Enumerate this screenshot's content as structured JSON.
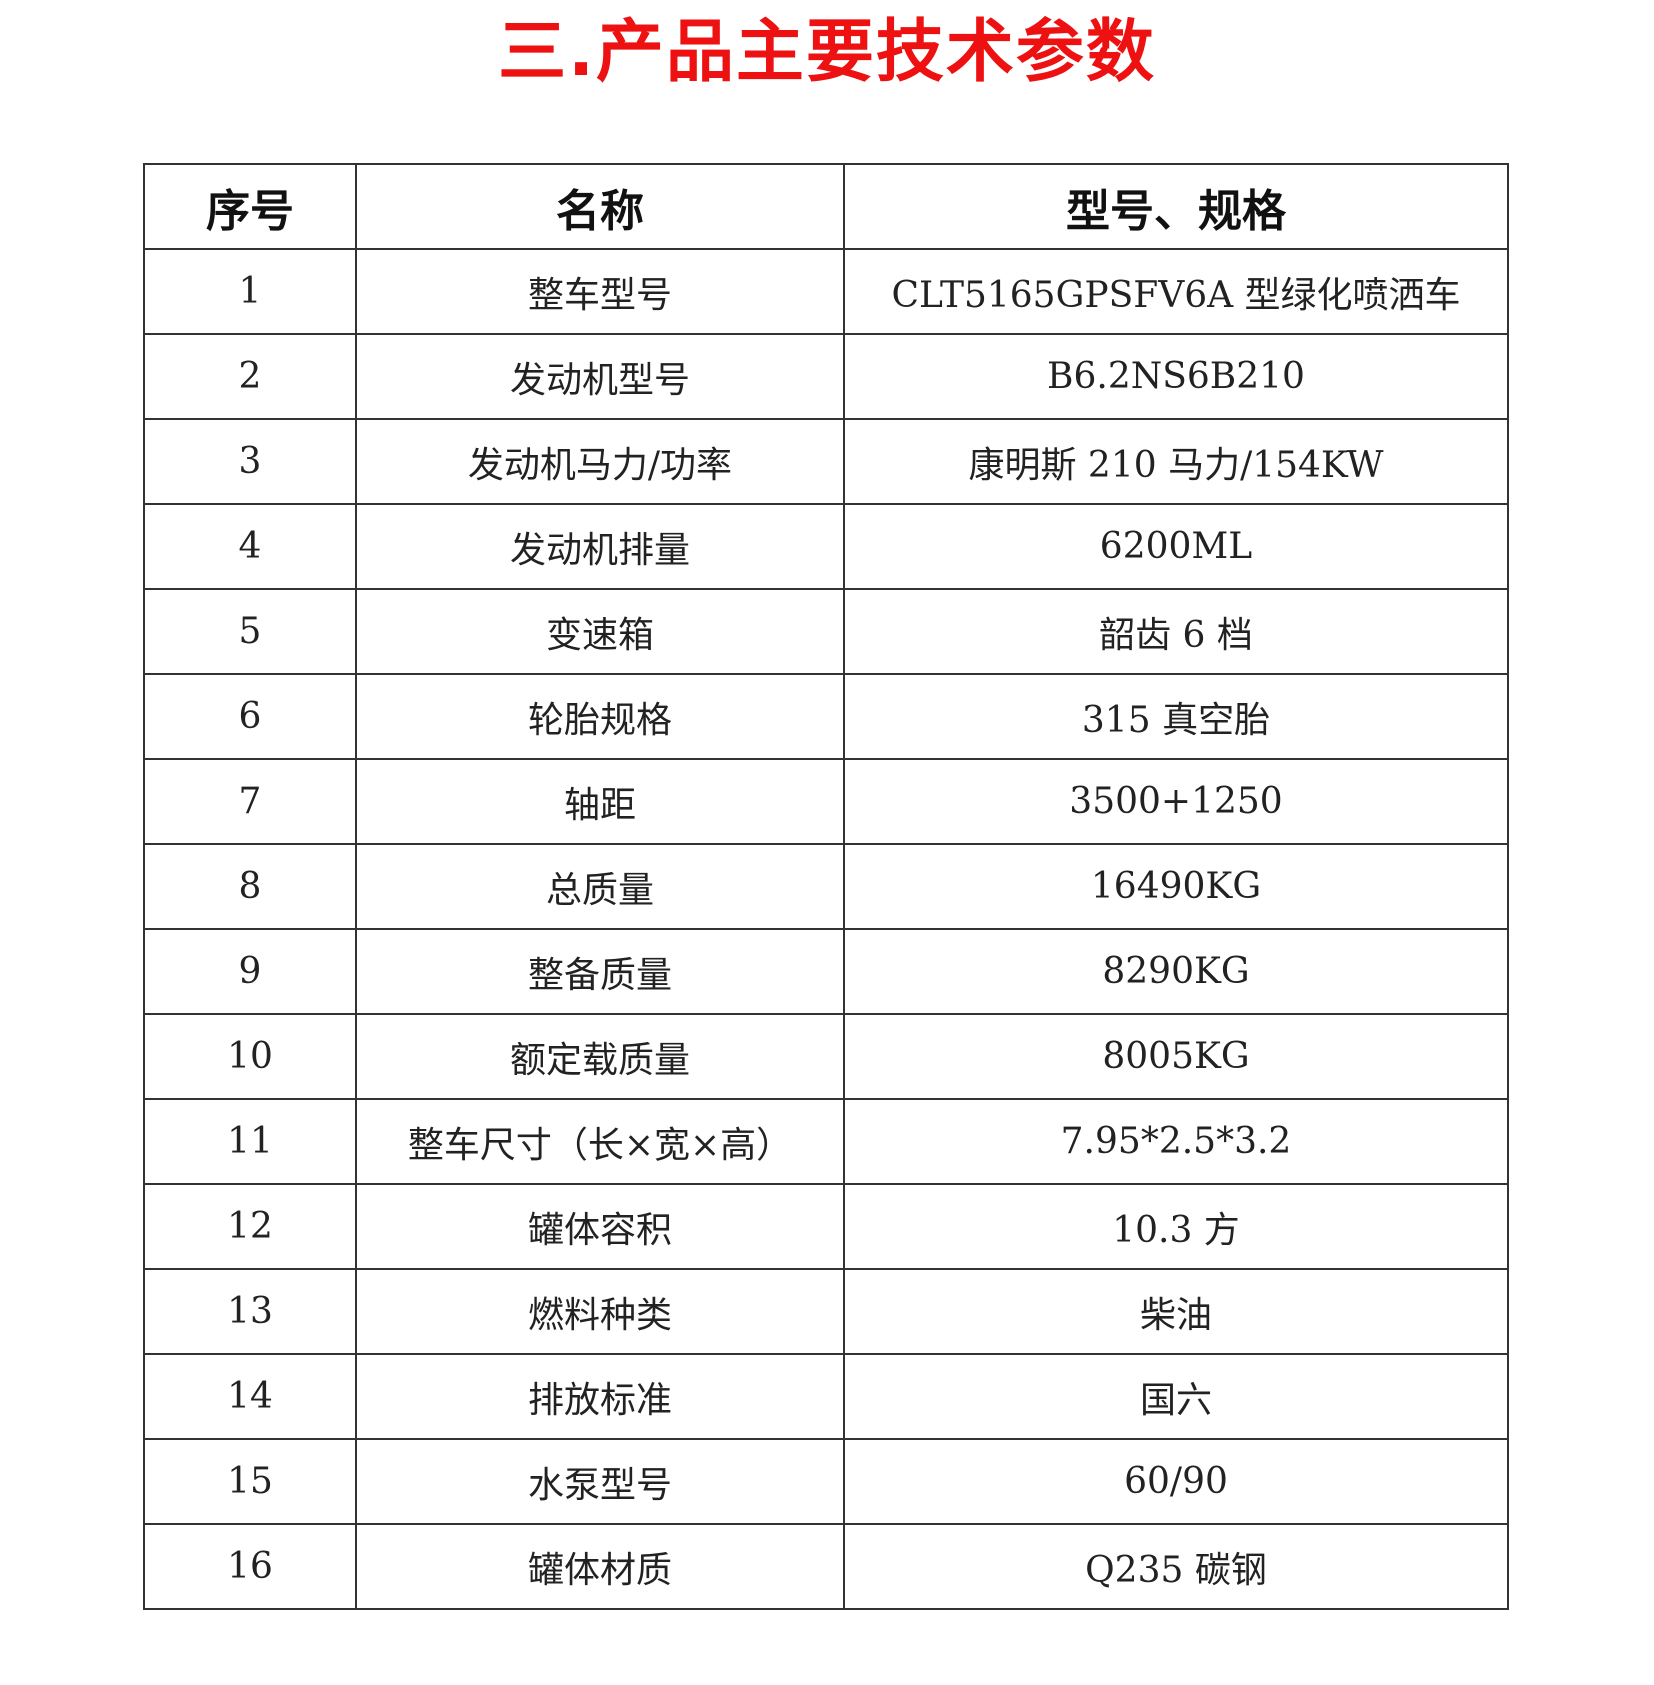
{
  "title": "三.产品主要技术参数",
  "table": {
    "headers": [
      "序号",
      "名称",
      "型号、规格"
    ],
    "rows": [
      [
        "1",
        "整车型号",
        "CLT5165GPSFV6A 型绿化喷洒车"
      ],
      [
        "2",
        "发动机型号",
        "B6.2NS6B210"
      ],
      [
        "3",
        "发动机马力/功率",
        "康明斯 210 马力/154KW"
      ],
      [
        "4",
        "发动机排量",
        "6200ML"
      ],
      [
        "5",
        "变速箱",
        "韶齿 6 档"
      ],
      [
        "6",
        "轮胎规格",
        "315 真空胎"
      ],
      [
        "7",
        "轴距",
        "3500+1250"
      ],
      [
        "8",
        "总质量",
        "16490KG"
      ],
      [
        "9",
        "整备质量",
        "8290KG"
      ],
      [
        "10",
        "额定载质量",
        "8005KG"
      ],
      [
        "11",
        "整车尺寸（长×宽×高）",
        "7.95*2.5*3.2"
      ],
      [
        "12",
        "罐体容积",
        "10.3 方"
      ],
      [
        "13",
        "燃料种类",
        "柴油"
      ],
      [
        "14",
        "排放标准",
        "国六"
      ],
      [
        "15",
        "水泵型号",
        "60/90"
      ],
      [
        "16",
        "罐体材质",
        "Q235 碳钢"
      ]
    ]
  },
  "colors": {
    "title": "#ee1111",
    "border": "#333333"
  }
}
